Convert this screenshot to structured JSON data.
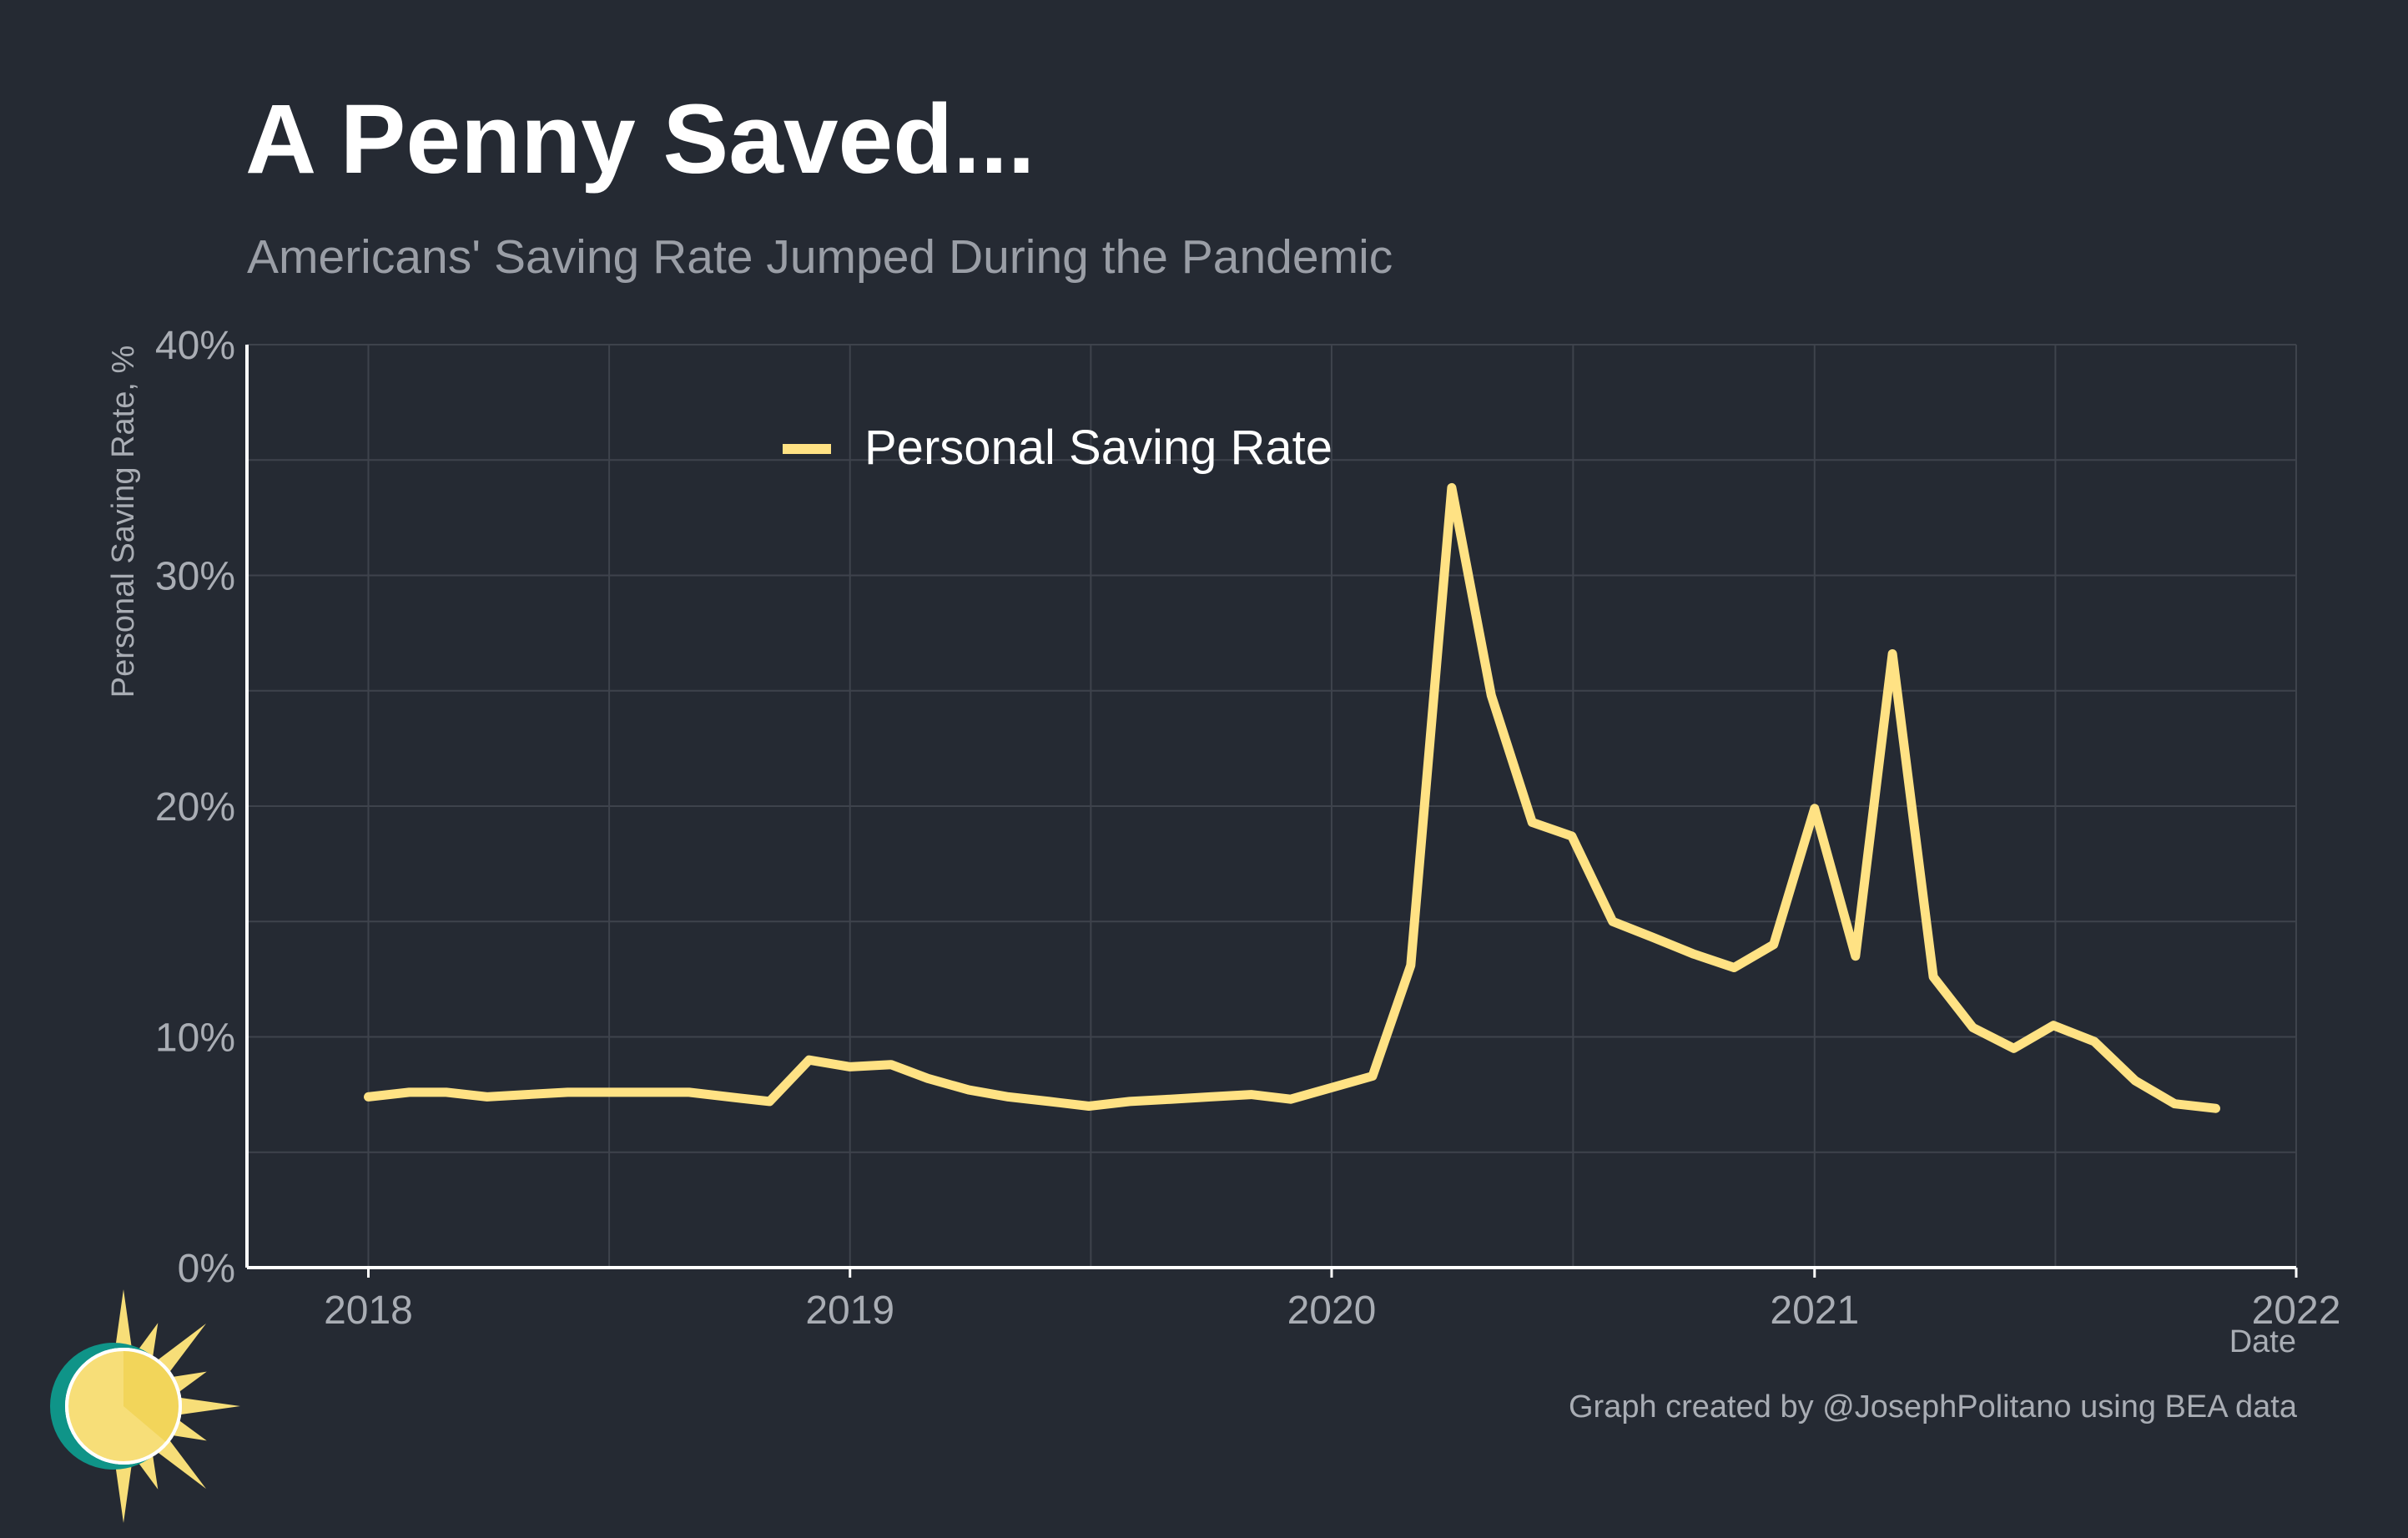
{
  "colors": {
    "background": "#252a33",
    "line": "#ffe284",
    "grid": "#3e434c",
    "axis": "#ffffff",
    "text_muted": "#a9adb4"
  },
  "caption": "Graph created by @JosephPolitano using BEA data",
  "logo": {
    "icon": "sun-logo-icon"
  },
  "chart_data": {
    "type": "line",
    "title": "A Penny Saved...",
    "subtitle": "Americans' Saving Rate Jumped During the Pandemic",
    "xlabel": "Date",
    "ylabel": "Personal Saving Rate, %",
    "xlim": [
      "2017-10-01",
      "2022-01-01"
    ],
    "ylim": [
      0,
      40
    ],
    "x_ticks": [
      {
        "date": "2018-01-01",
        "label": "2018"
      },
      {
        "date": "2019-01-01",
        "label": "2019"
      },
      {
        "date": "2020-01-01",
        "label": "2020"
      },
      {
        "date": "2021-01-01",
        "label": "2021"
      },
      {
        "date": "2022-01-01",
        "label": "2022"
      }
    ],
    "y_ticks": [
      {
        "value": 0,
        "label": "0%"
      },
      {
        "value": 10,
        "label": "10%"
      },
      {
        "value": 20,
        "label": "20%"
      },
      {
        "value": 30,
        "label": "30%"
      },
      {
        "value": 40,
        "label": "40%"
      }
    ],
    "grid": true,
    "legend": {
      "position": "top-left-center"
    },
    "series": [
      {
        "name": "Personal Saving Rate",
        "x": [
          "2018-01-01",
          "2018-02-01",
          "2018-03-01",
          "2018-04-01",
          "2018-05-01",
          "2018-06-01",
          "2018-07-01",
          "2018-08-01",
          "2018-09-01",
          "2018-10-01",
          "2018-11-01",
          "2018-12-01",
          "2019-01-01",
          "2019-02-01",
          "2019-03-01",
          "2019-04-01",
          "2019-05-01",
          "2019-06-01",
          "2019-07-01",
          "2019-08-01",
          "2019-09-01",
          "2019-10-01",
          "2019-11-01",
          "2019-12-01",
          "2020-01-01",
          "2020-02-01",
          "2020-03-01",
          "2020-04-01",
          "2020-05-01",
          "2020-06-01",
          "2020-07-01",
          "2020-08-01",
          "2020-09-01",
          "2020-10-01",
          "2020-11-01",
          "2020-12-01",
          "2021-01-01",
          "2021-02-01",
          "2021-03-01",
          "2021-04-01",
          "2021-05-01",
          "2021-06-01",
          "2021-07-01",
          "2021-08-01",
          "2021-09-01",
          "2021-10-01",
          "2021-11-01"
        ],
        "values": [
          7.4,
          7.6,
          7.6,
          7.4,
          7.5,
          7.6,
          7.6,
          7.6,
          7.6,
          7.4,
          7.2,
          9.0,
          8.7,
          8.8,
          8.2,
          7.7,
          7.4,
          7.2,
          7.0,
          7.2,
          7.3,
          7.4,
          7.5,
          7.3,
          7.8,
          8.3,
          13.1,
          33.8,
          24.8,
          19.3,
          18.7,
          15.0,
          14.3,
          13.6,
          13.0,
          14.0,
          19.9,
          13.5,
          26.6,
          12.6,
          10.4,
          9.5,
          10.5,
          9.8,
          8.1,
          7.1,
          6.9
        ]
      }
    ]
  }
}
